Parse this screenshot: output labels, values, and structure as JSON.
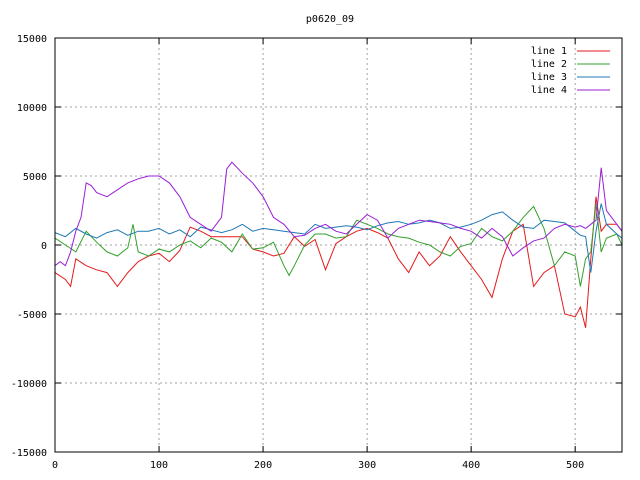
{
  "chart_data": {
    "type": "line",
    "title": "p0620_09",
    "xlabel": "",
    "ylabel": "",
    "xlim": [
      0,
      545
    ],
    "ylim": [
      -15000,
      15000
    ],
    "x_ticks": [
      0,
      100,
      200,
      300,
      400,
      500
    ],
    "y_ticks": [
      -15000,
      -10000,
      -5000,
      0,
      5000,
      10000,
      15000
    ],
    "grid": true,
    "legend_position": "top-right",
    "series": [
      {
        "name": "line 1",
        "color": "#e31a1c",
        "x": [
          0,
          10,
          15,
          20,
          30,
          40,
          50,
          60,
          70,
          80,
          90,
          100,
          110,
          120,
          130,
          140,
          150,
          160,
          170,
          180,
          190,
          200,
          210,
          220,
          230,
          240,
          250,
          260,
          270,
          280,
          290,
          300,
          310,
          320,
          330,
          340,
          350,
          360,
          370,
          380,
          390,
          400,
          410,
          420,
          430,
          440,
          450,
          460,
          470,
          480,
          490,
          500,
          505,
          510,
          515,
          520,
          525,
          530,
          540,
          545
        ],
        "y": [
          -2000,
          -2500,
          -3000,
          -1000,
          -1500,
          -1800,
          -2000,
          -3000,
          -2000,
          -1200,
          -800,
          -600,
          -1200,
          -400,
          1300,
          1000,
          600,
          600,
          600,
          600,
          -300,
          -500,
          -800,
          -600,
          600,
          -100,
          400,
          -1800,
          100,
          600,
          1000,
          1200,
          900,
          500,
          -1000,
          -2000,
          -500,
          -1500,
          -800,
          600,
          -500,
          -1500,
          -2500,
          -3800,
          -1000,
          1000,
          1500,
          -3000,
          -2000,
          -1500,
          -5000,
          -5200,
          -4500,
          -6000,
          -1000,
          3500,
          1000,
          1500,
          1500,
          1000
        ]
      },
      {
        "name": "line 2",
        "color": "#33a02c",
        "x": [
          0,
          10,
          20,
          30,
          40,
          50,
          60,
          70,
          75,
          80,
          90,
          100,
          110,
          120,
          130,
          140,
          150,
          160,
          170,
          180,
          190,
          200,
          210,
          220,
          225,
          230,
          240,
          250,
          260,
          270,
          280,
          290,
          300,
          310,
          320,
          330,
          340,
          350,
          360,
          370,
          380,
          390,
          400,
          410,
          420,
          430,
          440,
          450,
          460,
          470,
          480,
          490,
          500,
          505,
          510,
          515,
          520,
          525,
          530,
          540,
          545
        ],
        "y": [
          500,
          0,
          -500,
          1000,
          200,
          -500,
          -800,
          -200,
          1500,
          -500,
          -800,
          -300,
          -500,
          0,
          300,
          -200,
          500,
          200,
          -500,
          800,
          -300,
          -200,
          200,
          -1500,
          -2200,
          -1500,
          0,
          800,
          800,
          500,
          600,
          1800,
          1500,
          1200,
          800,
          600,
          500,
          200,
          0,
          -500,
          -800,
          -100,
          100,
          1200,
          600,
          300,
          1000,
          2000,
          2800,
          1200,
          -1500,
          -500,
          -800,
          -3000,
          -1000,
          -500,
          3000,
          -500,
          500,
          800,
          0
        ]
      },
      {
        "name": "line 3",
        "color": "#1f78b4",
        "x": [
          0,
          10,
          20,
          30,
          40,
          50,
          60,
          70,
          80,
          90,
          100,
          110,
          120,
          130,
          140,
          150,
          160,
          170,
          180,
          190,
          200,
          210,
          220,
          230,
          240,
          250,
          260,
          270,
          280,
          290,
          300,
          310,
          320,
          330,
          340,
          350,
          360,
          370,
          380,
          390,
          400,
          410,
          420,
          430,
          440,
          450,
          460,
          470,
          480,
          490,
          500,
          505,
          510,
          515,
          520,
          525,
          530,
          540,
          545
        ],
        "y": [
          900,
          600,
          1200,
          800,
          500,
          900,
          1100,
          700,
          1000,
          1000,
          1200,
          800,
          1100,
          600,
          1300,
          1100,
          900,
          1100,
          1500,
          1000,
          1200,
          1100,
          1000,
          900,
          800,
          1500,
          1200,
          1300,
          1400,
          1300,
          1100,
          1400,
          1600,
          1700,
          1500,
          1600,
          1800,
          1600,
          1200,
          1300,
          1500,
          1800,
          2200,
          2400,
          1800,
          1300,
          1200,
          1800,
          1700,
          1600,
          1000,
          700,
          600,
          -2000,
          1000,
          3000,
          1500,
          800,
          500
        ]
      },
      {
        "name": "line 4",
        "color": "#9a1fd6",
        "x": [
          0,
          5,
          10,
          15,
          20,
          25,
          30,
          35,
          40,
          50,
          60,
          70,
          80,
          90,
          100,
          110,
          120,
          130,
          140,
          150,
          160,
          165,
          170,
          180,
          190,
          200,
          210,
          220,
          230,
          240,
          250,
          260,
          270,
          280,
          290,
          300,
          310,
          320,
          330,
          340,
          350,
          360,
          370,
          380,
          390,
          400,
          410,
          420,
          430,
          440,
          450,
          460,
          470,
          480,
          490,
          500,
          505,
          510,
          515,
          520,
          525,
          530,
          540,
          545
        ],
        "y": [
          -1500,
          -1200,
          -1500,
          -500,
          1000,
          2000,
          4500,
          4300,
          3800,
          3500,
          4000,
          4500,
          4800,
          5000,
          5000,
          4500,
          3500,
          2000,
          1500,
          1000,
          2000,
          5500,
          6000,
          5200,
          4500,
          3500,
          2000,
          1500,
          600,
          700,
          1200,
          1500,
          1000,
          800,
          1500,
          2200,
          1800,
          500,
          1200,
          1500,
          1800,
          1700,
          1600,
          1500,
          1200,
          1000,
          500,
          1200,
          600,
          -800,
          -200,
          300,
          500,
          1200,
          1500,
          1300,
          1400,
          1200,
          1500,
          1800,
          5600,
          2500,
          1500,
          1000
        ]
      }
    ]
  }
}
